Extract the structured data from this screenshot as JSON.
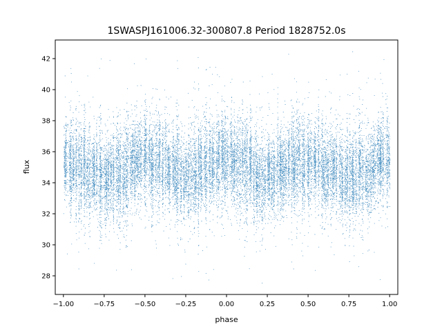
{
  "chart_data": {
    "type": "scatter",
    "title": "1SWASPJ161006.32-300807.8 Period 1828752.0s",
    "xlabel": "phase",
    "ylabel": "flux",
    "xlim": [
      -1.05,
      1.05
    ],
    "ylim": [
      26.8,
      43.2
    ],
    "xticks": [
      -1.0,
      -0.75,
      -0.5,
      -0.25,
      0.0,
      0.25,
      0.5,
      0.75,
      1.0
    ],
    "xtick_labels": [
      "−1.00",
      "−0.75",
      "−0.50",
      "−0.25",
      "0.00",
      "0.25",
      "0.50",
      "0.75",
      "1.00"
    ],
    "yticks": [
      28,
      30,
      32,
      34,
      36,
      38,
      40,
      42
    ],
    "ytick_labels": [
      "28",
      "30",
      "32",
      "34",
      "36",
      "38",
      "40",
      "42"
    ],
    "grid": false,
    "point_color": "#1f77b4",
    "series": [
      {
        "phase_range": [
          -1.0,
          1.0
        ],
        "flux_center": 35.0,
        "flux_typical_range": [
          32.5,
          37.5
        ],
        "flux_full_range": [
          27.5,
          42.5
        ],
        "approx_points": 20000
      }
    ]
  }
}
